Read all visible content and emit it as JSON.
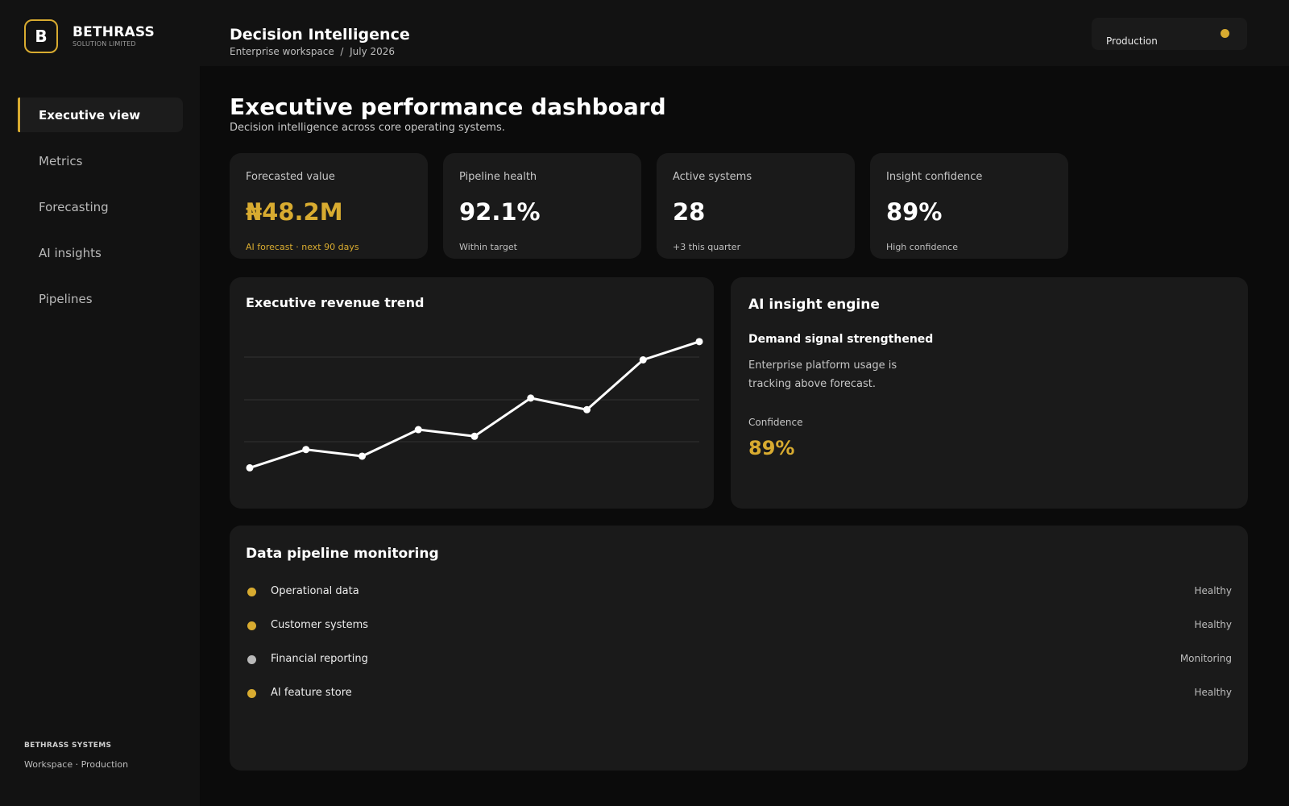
{
  "brand": {
    "mark": "B",
    "name": "BETHRASS",
    "sub": "SOLUTION LIMITED"
  },
  "nav": {
    "items": [
      {
        "label": "Executive view",
        "active": true
      },
      {
        "label": "Metrics",
        "active": false
      },
      {
        "label": "Forecasting",
        "active": false
      },
      {
        "label": "AI insights",
        "active": false
      },
      {
        "label": "Pipelines",
        "active": false
      }
    ]
  },
  "sidebar_footer": {
    "title": "BETHRASS SYSTEMS",
    "subtitle": "Workspace · Production"
  },
  "topbar": {
    "title": "Decision Intelligence",
    "breadcrumb": "Enterprise workspace  /  July 2026",
    "environment": "Production",
    "environment_color": "#d8ab30"
  },
  "page": {
    "title": "Executive performance dashboard",
    "subtitle": "Decision intelligence across core operating systems."
  },
  "kpis": [
    {
      "label": "Forecasted value",
      "value": "₦48.2M",
      "note": "AI forecast · next 90 days",
      "accent": true
    },
    {
      "label": "Pipeline health",
      "value": "92.1%",
      "note": "Within target",
      "accent": false
    },
    {
      "label": "Active systems",
      "value": "28",
      "note": "+3 this quarter",
      "accent": false
    },
    {
      "label": "Insight confidence",
      "value": "89%",
      "note": "High confidence",
      "accent": false
    }
  ],
  "revenue_chart": {
    "title": "Executive revenue trend",
    "chart_data": {
      "type": "line",
      "x": [
        1,
        2,
        3,
        4,
        5,
        6,
        7,
        8,
        9
      ],
      "values": [
        10,
        21,
        17,
        33,
        29,
        52,
        45,
        75,
        86
      ],
      "ylim": [
        0,
        100
      ],
      "grid": true,
      "gridlines": 3,
      "color": "#ffffff"
    }
  },
  "insight": {
    "title": "AI insight engine",
    "headline": "Demand signal strengthened",
    "body": "Enterprise platform usage is tracking above forecast.",
    "confidence_label": "Confidence",
    "confidence_value": "89%"
  },
  "pipelines": {
    "title": "Data pipeline monitoring",
    "rows": [
      {
        "name": "Operational data",
        "status": "Healthy",
        "dot_color": "#d8ab30"
      },
      {
        "name": "Customer systems",
        "status": "Healthy",
        "dot_color": "#d8ab30"
      },
      {
        "name": "Financial reporting",
        "status": "Monitoring",
        "dot_color": "#b9b9b9"
      },
      {
        "name": "AI feature store",
        "status": "Healthy",
        "dot_color": "#d8ab30"
      }
    ]
  },
  "colors": {
    "accent": "#d8ab30",
    "background": "#0b0b0b",
    "surface": "#1a1a1a"
  }
}
